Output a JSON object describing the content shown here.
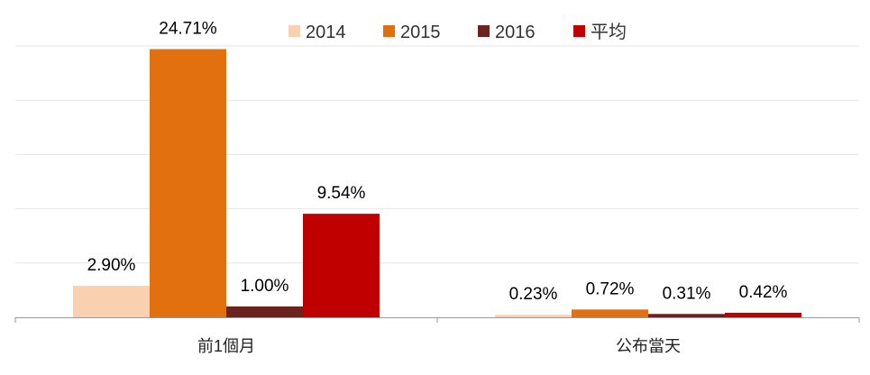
{
  "chart_data": {
    "type": "bar",
    "categories": [
      "前1個月",
      "公布當天"
    ],
    "series": [
      {
        "name": "2014",
        "color": "#FAD1B0",
        "values": [
          2.9,
          0.23
        ],
        "labels": [
          "2.90%",
          "0.23%"
        ]
      },
      {
        "name": "2015",
        "color": "#E2700F",
        "values": [
          24.71,
          0.72
        ],
        "labels": [
          "24.71%",
          "0.72%"
        ]
      },
      {
        "name": "2016",
        "color": "#6B2320",
        "values": [
          1.0,
          0.31
        ],
        "labels": [
          "1.00%",
          "0.31%"
        ]
      },
      {
        "name": "平均",
        "color": "#C00000",
        "values": [
          9.54,
          0.42
        ],
        "labels": [
          "9.54%",
          "0.42%"
        ]
      }
    ],
    "ylim": [
      0,
      25
    ],
    "grid": true,
    "legend_position": "top",
    "title": "",
    "xlabel": "",
    "ylabel": ""
  }
}
